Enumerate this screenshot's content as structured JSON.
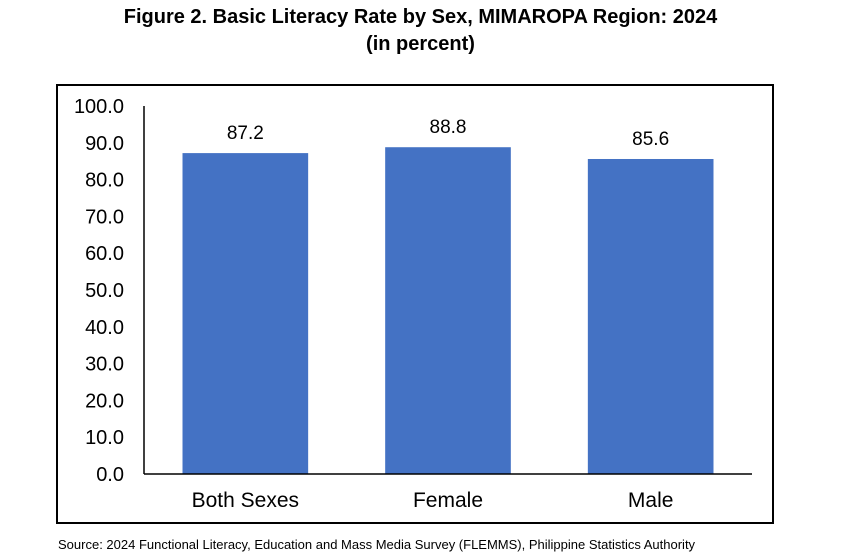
{
  "chart_data": {
    "type": "bar",
    "title": "Figure 2. Basic Literacy Rate by Sex, MIMAROPA Region: 2024",
    "subtitle": "(in percent)",
    "categories": [
      "Both Sexes",
      "Female",
      "Male"
    ],
    "values": [
      87.2,
      88.8,
      85.6
    ],
    "data_labels": [
      "87.2",
      "88.8",
      "85.6"
    ],
    "ylim": [
      0,
      100
    ],
    "yticks": [
      "0.0",
      "10.0",
      "20.0",
      "30.0",
      "40.0",
      "50.0",
      "60.0",
      "70.0",
      "80.0",
      "90.0",
      "100.0"
    ],
    "xlabel": "",
    "ylabel": "",
    "grid": false,
    "legend": "none",
    "bar_color": "#4472C4"
  },
  "source": "Source: 2024 Functional Literacy, Education and Mass Media Survey (FLEMMS), Philippine Statistics Authority"
}
